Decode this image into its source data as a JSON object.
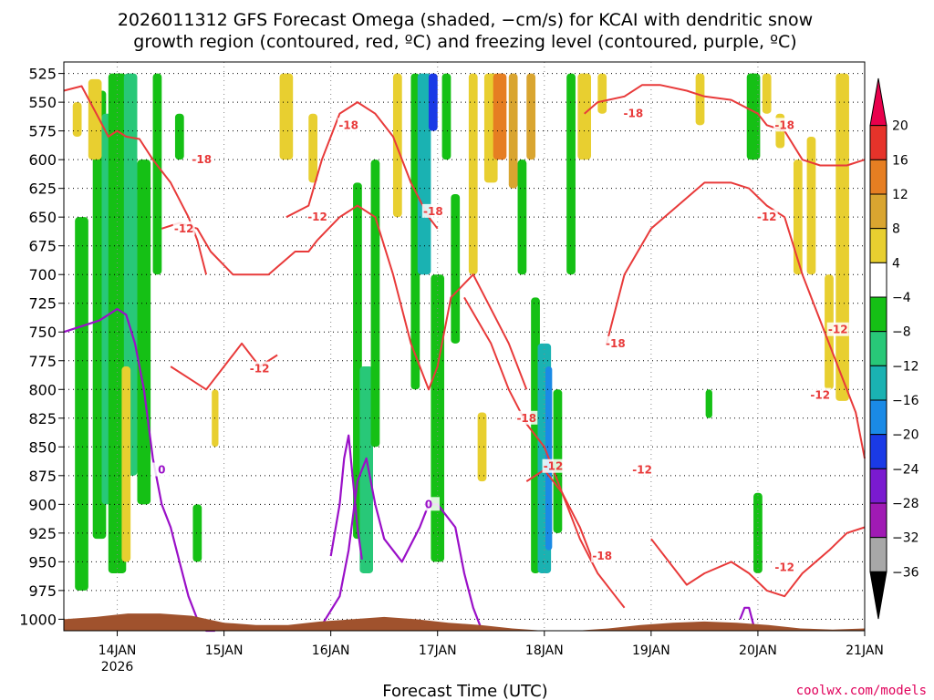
{
  "chart_data": {
    "type": "heatmap",
    "title_line1": "2026011312 GFS Forecast Omega (shaded, −cm/s) for KCAI with dendritic snow",
    "title_line2": "growth region (contoured, red, ºC) and freezing level (contoured, purple, ºC)",
    "xlabel": "Forecast Time (UTC)",
    "credit": "coolwx.com/models",
    "pressure_levels": [
      525,
      550,
      575,
      600,
      625,
      650,
      675,
      700,
      725,
      750,
      775,
      800,
      825,
      850,
      875,
      900,
      925,
      950,
      975,
      1000
    ],
    "x_ticks": [
      {
        "label": "14JAN",
        "sub": "2026",
        "hour": 12
      },
      {
        "label": "15JAN",
        "sub": "",
        "hour": 36
      },
      {
        "label": "16JAN",
        "sub": "",
        "hour": 60
      },
      {
        "label": "17JAN",
        "sub": "",
        "hour": 84
      },
      {
        "label": "18JAN",
        "sub": "",
        "hour": 108
      },
      {
        "label": "19JAN",
        "sub": "",
        "hour": 132
      },
      {
        "label": "20JAN",
        "sub": "",
        "hour": 156
      },
      {
        "label": "21JAN",
        "sub": "",
        "hour": 180
      }
    ],
    "x_range_hours": [
      0,
      180
    ],
    "y_range_hpa": [
      515,
      1010
    ],
    "colorbar": {
      "ticks": [
        "20",
        "16",
        "12",
        "8",
        "4",
        "−4",
        "−8",
        "−12",
        "−16",
        "−20",
        "−24",
        "−28",
        "−32",
        "−36"
      ],
      "colors": [
        "#e8004c",
        "#e6332a",
        "#e67e22",
        "#d9a530",
        "#e8cf30",
        "#ffffff",
        "#15c015",
        "#28c878",
        "#1ab2b2",
        "#1a8ae6",
        "#1a3ae6",
        "#7a1ad0",
        "#a01ab4",
        "#a8a8a8",
        "#000000"
      ]
    },
    "omega_regions": [
      {
        "hour": 4,
        "width": 3,
        "p_top": 650,
        "p_bot": 975,
        "value": -8
      },
      {
        "hour": 8,
        "width": 3,
        "p_top": 540,
        "p_bot": 930,
        "value": -8
      },
      {
        "hour": 10,
        "width": 3,
        "p_top": 560,
        "p_bot": 900,
        "value": -12
      },
      {
        "hour": 12,
        "width": 4,
        "p_top": 525,
        "p_bot": 960,
        "value": -8
      },
      {
        "hour": 15,
        "width": 3,
        "p_top": 525,
        "p_bot": 875,
        "value": -12
      },
      {
        "hour": 18,
        "width": 3,
        "p_top": 600,
        "p_bot": 900,
        "value": -8
      },
      {
        "hour": 21,
        "width": 2,
        "p_top": 525,
        "p_bot": 700,
        "value": -8
      },
      {
        "hour": 26,
        "width": 2,
        "p_top": 560,
        "p_bot": 600,
        "value": -8
      },
      {
        "hour": 30,
        "width": 2,
        "p_top": 900,
        "p_bot": 950,
        "value": -8
      },
      {
        "hour": 3,
        "width": 2,
        "p_top": 550,
        "p_bot": 580,
        "value": 4
      },
      {
        "hour": 7,
        "width": 3,
        "p_top": 530,
        "p_bot": 600,
        "value": 4
      },
      {
        "hour": 14,
        "width": 2,
        "p_top": 780,
        "p_bot": 950,
        "value": 4
      },
      {
        "hour": 34,
        "width": 1.5,
        "p_top": 800,
        "p_bot": 850,
        "value": 4
      },
      {
        "hour": 50,
        "width": 3,
        "p_top": 525,
        "p_bot": 600,
        "value": 4
      },
      {
        "hour": 56,
        "width": 2,
        "p_top": 560,
        "p_bot": 620,
        "value": 4
      },
      {
        "hour": 66,
        "width": 2,
        "p_top": 620,
        "p_bot": 930,
        "value": -8
      },
      {
        "hour": 68,
        "width": 3,
        "p_top": 780,
        "p_bot": 960,
        "value": -12
      },
      {
        "hour": 70,
        "width": 2,
        "p_top": 600,
        "p_bot": 850,
        "value": -8
      },
      {
        "hour": 75,
        "width": 2,
        "p_top": 525,
        "p_bot": 650,
        "value": 4
      },
      {
        "hour": 79,
        "width": 2,
        "p_top": 525,
        "p_bot": 800,
        "value": -8
      },
      {
        "hour": 81,
        "width": 3,
        "p_top": 525,
        "p_bot": 700,
        "value": -16
      },
      {
        "hour": 83,
        "width": 2,
        "p_top": 525,
        "p_bot": 575,
        "value": -24
      },
      {
        "hour": 84,
        "width": 3,
        "p_top": 700,
        "p_bot": 950,
        "value": -8
      },
      {
        "hour": 86,
        "width": 2,
        "p_top": 525,
        "p_bot": 600,
        "value": -8
      },
      {
        "hour": 88,
        "width": 2,
        "p_top": 630,
        "p_bot": 760,
        "value": -8
      },
      {
        "hour": 92,
        "width": 2,
        "p_top": 525,
        "p_bot": 700,
        "value": 4
      },
      {
        "hour": 94,
        "width": 2,
        "p_top": 820,
        "p_bot": 880,
        "value": 4
      },
      {
        "hour": 96,
        "width": 3,
        "p_top": 525,
        "p_bot": 620,
        "value": 4
      },
      {
        "hour": 98,
        "width": 3,
        "p_top": 525,
        "p_bot": 600,
        "value": 12
      },
      {
        "hour": 101,
        "width": 2,
        "p_top": 525,
        "p_bot": 625,
        "value": 8
      },
      {
        "hour": 103,
        "width": 2,
        "p_top": 600,
        "p_bot": 700,
        "value": -8
      },
      {
        "hour": 105,
        "width": 2,
        "p_top": 525,
        "p_bot": 600,
        "value": 8
      },
      {
        "hour": 106,
        "width": 2,
        "p_top": 720,
        "p_bot": 960,
        "value": -8
      },
      {
        "hour": 108,
        "width": 3,
        "p_top": 760,
        "p_bot": 960,
        "value": -16
      },
      {
        "hour": 109,
        "width": 1.5,
        "p_top": 780,
        "p_bot": 940,
        "value": -20
      },
      {
        "hour": 111,
        "width": 2,
        "p_top": 800,
        "p_bot": 925,
        "value": -8
      },
      {
        "hour": 114,
        "width": 2,
        "p_top": 525,
        "p_bot": 700,
        "value": -8
      },
      {
        "hour": 117,
        "width": 3,
        "p_top": 525,
        "p_bot": 600,
        "value": 4
      },
      {
        "hour": 121,
        "width": 2,
        "p_top": 525,
        "p_bot": 560,
        "value": 4
      },
      {
        "hour": 143,
        "width": 2,
        "p_top": 525,
        "p_bot": 570,
        "value": 4
      },
      {
        "hour": 145,
        "width": 1.5,
        "p_top": 800,
        "p_bot": 825,
        "value": -8
      },
      {
        "hour": 155,
        "width": 3,
        "p_top": 525,
        "p_bot": 600,
        "value": -8
      },
      {
        "hour": 156,
        "width": 2,
        "p_top": 890,
        "p_bot": 960,
        "value": -8
      },
      {
        "hour": 158,
        "width": 2,
        "p_top": 525,
        "p_bot": 560,
        "value": 4
      },
      {
        "hour": 161,
        "width": 2,
        "p_top": 560,
        "p_bot": 590,
        "value": 4
      },
      {
        "hour": 165,
        "width": 2,
        "p_top": 600,
        "p_bot": 700,
        "value": 4
      },
      {
        "hour": 168,
        "width": 2,
        "p_top": 580,
        "p_bot": 700,
        "value": 4
      },
      {
        "hour": 172,
        "width": 2,
        "p_top": 700,
        "p_bot": 800,
        "value": 4
      },
      {
        "hour": 175,
        "width": 3,
        "p_top": 525,
        "p_bot": 810,
        "value": 4
      }
    ],
    "dgz_contours": [
      {
        "label": "-18",
        "hours": [
          0,
          4,
          8,
          10,
          12,
          14,
          17,
          20,
          24,
          28,
          30,
          32
        ],
        "p": [
          540,
          536,
          565,
          580,
          575,
          580,
          582,
          600,
          620,
          650,
          670,
          700
        ]
      },
      {
        "label": "-18",
        "hours": [
          50,
          55,
          58,
          62,
          66,
          70,
          74,
          78,
          82,
          84
        ],
        "p": [
          650,
          640,
          600,
          560,
          550,
          560,
          580,
          620,
          650,
          660
        ]
      },
      {
        "label": "-18",
        "hours": [
          117,
          120,
          126,
          130,
          134,
          140,
          144,
          150,
          156,
          158,
          162,
          166,
          170,
          176,
          180
        ],
        "p": [
          560,
          550,
          545,
          535,
          535,
          540,
          545,
          548,
          560,
          570,
          575,
          600,
          605,
          605,
          600
        ]
      },
      {
        "label": "-12",
        "hours": [
          22,
          26,
          30,
          33,
          38,
          46,
          52,
          55,
          57
        ],
        "p": [
          660,
          655,
          660,
          680,
          700,
          700,
          680,
          680,
          670
        ]
      },
      {
        "label": "-12",
        "hours": [
          57,
          62,
          66,
          70,
          74,
          78,
          82,
          84,
          87,
          92,
          100,
          104
        ],
        "p": [
          670,
          650,
          640,
          650,
          700,
          760,
          800,
          780,
          720,
          700,
          760,
          800
        ]
      },
      {
        "label": "-12",
        "hours": [
          122,
          126,
          132,
          138,
          144,
          150,
          154,
          158,
          162,
          166,
          170,
          174,
          178,
          180
        ],
        "p": [
          760,
          700,
          660,
          640,
          620,
          620,
          625,
          640,
          650,
          700,
          740,
          780,
          820,
          860
        ]
      },
      {
        "label": "-18",
        "hours": [
          90,
          96,
          100,
          104,
          108,
          110,
          112,
          116,
          119
        ],
        "p": [
          720,
          760,
          800,
          830,
          850,
          870,
          890,
          920,
          950
        ]
      },
      {
        "label": "-12",
        "hours": [
          104,
          108,
          112,
          116,
          120,
          124,
          126
        ],
        "p": [
          880,
          870,
          890,
          930,
          960,
          980,
          990
        ]
      },
      {
        "label": "-12",
        "hours": [
          24,
          28,
          32,
          36,
          40,
          44,
          48
        ],
        "p": [
          780,
          790,
          800,
          780,
          760,
          780,
          770
        ]
      },
      {
        "label": "-12",
        "hours": [
          132,
          136,
          140,
          144,
          150,
          154,
          158,
          162,
          166,
          172,
          176,
          180
        ],
        "p": [
          930,
          950,
          970,
          960,
          950,
          960,
          975,
          980,
          960,
          940,
          925,
          920
        ]
      }
    ],
    "freezing_contours": [
      {
        "label": "0",
        "hours": [
          0,
          4,
          8,
          10,
          12,
          14,
          16,
          18,
          20,
          22,
          24,
          26,
          28,
          30,
          32,
          34
        ],
        "p": [
          750,
          745,
          740,
          735,
          730,
          735,
          760,
          800,
          860,
          900,
          920,
          950,
          980,
          1000,
          1010,
          1015
        ]
      },
      {
        "label": "0",
        "hours": [
          58,
          62,
          64,
          66,
          68,
          70,
          72,
          76,
          80,
          82,
          84,
          88,
          90,
          92,
          94
        ],
        "p": [
          1005,
          980,
          940,
          880,
          860,
          900,
          930,
          950,
          920,
          900,
          900,
          920,
          960,
          990,
          1010
        ]
      },
      {
        "label": "0",
        "hours": [
          60,
          62,
          63,
          64,
          65,
          66,
          67
        ],
        "p": [
          945,
          900,
          860,
          840,
          880,
          920,
          948
        ]
      },
      {
        "label": "0",
        "hours": [
          152,
          153,
          154,
          155
        ],
        "p": [
          1000,
          990,
          990,
          1005
        ]
      }
    ],
    "contour_labels": [
      {
        "text": "-18",
        "hour": 31,
        "p": 600,
        "kind": "dgz"
      },
      {
        "text": "-18",
        "hour": 64,
        "p": 570,
        "kind": "dgz"
      },
      {
        "text": "-18",
        "hour": 83,
        "p": 645,
        "kind": "dgz"
      },
      {
        "text": "-18",
        "hour": 128,
        "p": 560,
        "kind": "dgz"
      },
      {
        "text": "-18",
        "hour": 162,
        "p": 570,
        "kind": "dgz"
      },
      {
        "text": "-12",
        "hour": 27,
        "p": 660,
        "kind": "dgz"
      },
      {
        "text": "-12",
        "hour": 57,
        "p": 650,
        "kind": "dgz"
      },
      {
        "text": "-12",
        "hour": 44,
        "p": 782,
        "kind": "dgz"
      },
      {
        "text": "-12",
        "hour": 158,
        "p": 650,
        "kind": "dgz"
      },
      {
        "text": "-12",
        "hour": 174,
        "p": 748,
        "kind": "dgz"
      },
      {
        "text": "-12",
        "hour": 170,
        "p": 805,
        "kind": "dgz"
      },
      {
        "text": "-12",
        "hour": 110,
        "p": 867,
        "kind": "dgz"
      },
      {
        "text": "-12",
        "hour": 130,
        "p": 870,
        "kind": "dgz"
      },
      {
        "text": "-12",
        "hour": 162,
        "p": 955,
        "kind": "dgz"
      },
      {
        "text": "-18",
        "hour": 104,
        "p": 825,
        "kind": "dgz"
      },
      {
        "text": "-18",
        "hour": 124,
        "p": 760,
        "kind": "dgz"
      },
      {
        "text": "-18",
        "hour": 121,
        "p": 945,
        "kind": "dgz"
      },
      {
        "text": "0",
        "hour": 22,
        "p": 870,
        "kind": "freezing"
      },
      {
        "text": "0",
        "hour": 82,
        "p": 900,
        "kind": "freezing"
      }
    ],
    "terrain_pressure_hpa": [
      1000,
      998,
      995,
      995,
      997,
      1003,
      1005,
      1005,
      1002,
      1000,
      998,
      1000,
      1003,
      1005,
      1008,
      1010,
      1010,
      1008,
      1005,
      1003,
      1002,
      1003,
      1005,
      1008,
      1009,
      1008
    ]
  }
}
